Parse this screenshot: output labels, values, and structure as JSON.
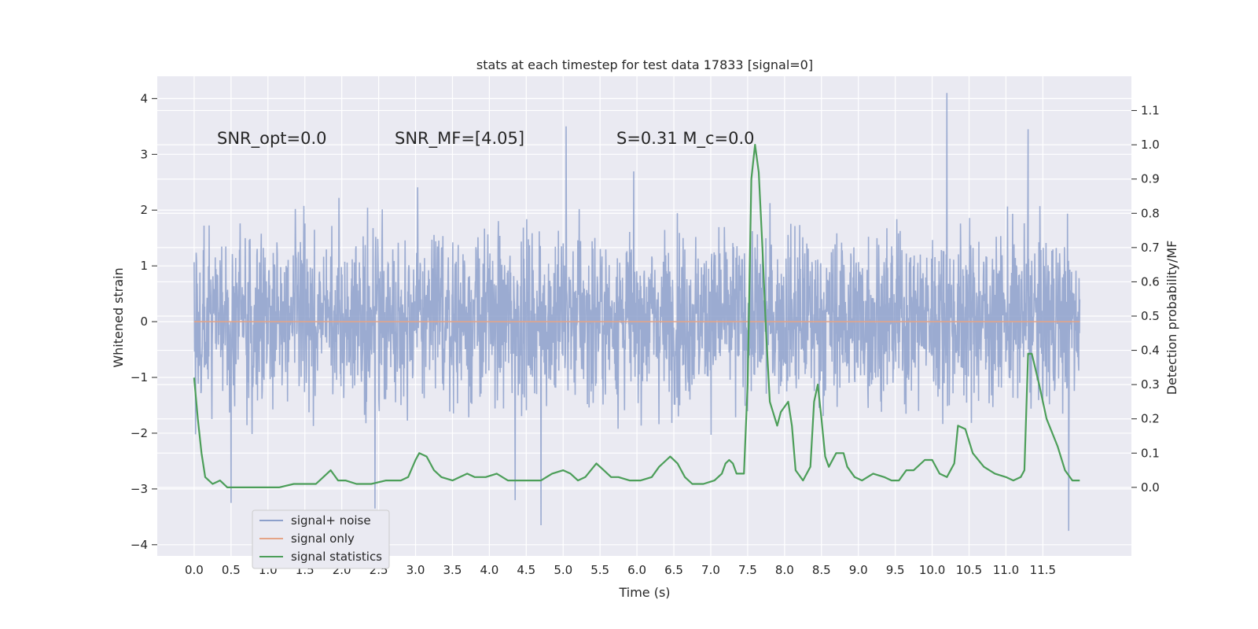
{
  "chart_data": {
    "type": "line",
    "title": "stats at each timestep for test data 17833 [signal=0]",
    "xlabel": "Time (s)",
    "ylabel": "Whitened strain",
    "y2label": "Detection probability/MF",
    "xlim": [
      -0.5,
      12.7
    ],
    "ylim": [
      -4.2,
      4.4
    ],
    "y2lim": [
      -0.2,
      1.2
    ],
    "x_ticks": [
      0.0,
      0.5,
      1.0,
      1.5,
      2.0,
      2.5,
      3.0,
      3.5,
      4.0,
      4.5,
      5.0,
      5.5,
      6.0,
      6.5,
      7.0,
      7.5,
      8.0,
      8.5,
      9.0,
      9.5,
      10.0,
      10.5,
      11.0,
      11.5
    ],
    "x_tick_labels": [
      "0.0",
      "0.5",
      "1.0",
      "1.5",
      "2.0",
      "2.5",
      "3.0",
      "3.5",
      "4.0",
      "4.5",
      "5.0",
      "5.5",
      "6.0",
      "6.5",
      "7.0",
      "7.5",
      "8.0",
      "8.5",
      "9.0",
      "9.5",
      "10.0",
      "10.5",
      "11.0",
      "11.5"
    ],
    "y_ticks": [
      4,
      3,
      2,
      1,
      0,
      -1,
      -2,
      -3,
      -4
    ],
    "y_tick_labels": [
      "4",
      "3",
      "2",
      "1",
      "0",
      "−1",
      "−2",
      "−3",
      "−4"
    ],
    "y2_ticks": [
      0.0,
      0.1,
      0.2,
      0.3,
      0.4,
      0.5,
      0.6,
      0.7,
      0.8,
      0.9,
      1.0,
      1.1
    ],
    "y2_tick_labels": [
      "0.0",
      "0.1",
      "0.2",
      "0.3",
      "0.4",
      "0.5",
      "0.6",
      "0.7",
      "0.8",
      "0.9",
      "1.0",
      "1.1"
    ],
    "grid": true,
    "legend_position": "lower-left",
    "annotations": [
      {
        "text": "SNR_opt=0.0"
      },
      {
        "text": "SNR_MF=[4.05]"
      },
      {
        "text": "S=0.31   M_c=0.0"
      }
    ],
    "series": [
      {
        "name": "signal+ noise",
        "axis": "left",
        "color": "#8da0cb",
        "x_range": [
          0.0,
          12.0
        ],
        "envelope": "Gaussian-like noise spanning roughly -3.7 to 4.1, dense band between about -1.8 and 2.0",
        "peaks": [
          {
            "x": 10.2,
            "y": 4.1
          },
          {
            "x": 5.04,
            "y": 3.5
          },
          {
            "x": 11.3,
            "y": 3.45
          },
          {
            "x": 4.7,
            "y": -3.65
          },
          {
            "x": 11.85,
            "y": -3.75
          },
          {
            "x": 0.5,
            "y": -3.25
          },
          {
            "x": 2.45,
            "y": -3.35
          },
          {
            "x": 4.35,
            "y": -3.2
          }
        ]
      },
      {
        "name": "signal only",
        "axis": "left",
        "color": "#e5a487",
        "x": [
          0.0,
          12.0
        ],
        "y": [
          0.0,
          0.0
        ]
      },
      {
        "name": "signal statistics",
        "axis": "right",
        "color": "#4c9e59",
        "x": [
          0.0,
          0.05,
          0.1,
          0.15,
          0.25,
          0.35,
          0.45,
          0.55,
          0.75,
          0.95,
          1.15,
          1.35,
          1.55,
          1.65,
          1.75,
          1.85,
          1.95,
          2.05,
          2.2,
          2.4,
          2.6,
          2.8,
          2.9,
          3.0,
          3.05,
          3.15,
          3.25,
          3.35,
          3.5,
          3.6,
          3.7,
          3.8,
          3.95,
          4.1,
          4.25,
          4.4,
          4.6,
          4.7,
          4.85,
          5.0,
          5.1,
          5.2,
          5.3,
          5.45,
          5.55,
          5.65,
          5.75,
          5.9,
          6.05,
          6.2,
          6.3,
          6.4,
          6.45,
          6.55,
          6.65,
          6.75,
          6.9,
          7.05,
          7.15,
          7.2,
          7.25,
          7.3,
          7.35,
          7.45,
          7.5,
          7.55,
          7.6,
          7.65,
          7.7,
          7.75,
          7.8,
          7.9,
          7.95,
          8.05,
          8.1,
          8.15,
          8.25,
          8.35,
          8.4,
          8.45,
          8.5,
          8.55,
          8.6,
          8.7,
          8.8,
          8.85,
          8.95,
          9.05,
          9.2,
          9.35,
          9.45,
          9.55,
          9.65,
          9.75,
          9.9,
          10.0,
          10.1,
          10.2,
          10.3,
          10.35,
          10.45,
          10.55,
          10.7,
          10.85,
          11.0,
          11.1,
          11.2,
          11.25,
          11.3,
          11.35,
          11.45,
          11.55,
          11.7,
          11.8,
          11.9,
          12.0
        ],
        "y": [
          0.32,
          0.2,
          0.1,
          0.03,
          0.01,
          0.02,
          0.0,
          0.0,
          0.0,
          0.0,
          0.0,
          0.01,
          0.01,
          0.01,
          0.03,
          0.05,
          0.02,
          0.02,
          0.01,
          0.01,
          0.02,
          0.02,
          0.03,
          0.08,
          0.1,
          0.09,
          0.05,
          0.03,
          0.02,
          0.03,
          0.04,
          0.03,
          0.03,
          0.04,
          0.02,
          0.02,
          0.02,
          0.02,
          0.04,
          0.05,
          0.04,
          0.02,
          0.03,
          0.07,
          0.05,
          0.03,
          0.03,
          0.02,
          0.02,
          0.03,
          0.06,
          0.08,
          0.09,
          0.07,
          0.03,
          0.01,
          0.01,
          0.02,
          0.04,
          0.07,
          0.08,
          0.07,
          0.04,
          0.04,
          0.3,
          0.9,
          1.0,
          0.92,
          0.7,
          0.45,
          0.25,
          0.18,
          0.22,
          0.25,
          0.18,
          0.05,
          0.02,
          0.06,
          0.25,
          0.3,
          0.2,
          0.09,
          0.06,
          0.1,
          0.1,
          0.06,
          0.03,
          0.02,
          0.04,
          0.03,
          0.02,
          0.02,
          0.05,
          0.05,
          0.08,
          0.08,
          0.04,
          0.03,
          0.07,
          0.18,
          0.17,
          0.1,
          0.06,
          0.04,
          0.03,
          0.02,
          0.03,
          0.05,
          0.39,
          0.39,
          0.3,
          0.2,
          0.12,
          0.05,
          0.02,
          0.02
        ]
      }
    ]
  }
}
